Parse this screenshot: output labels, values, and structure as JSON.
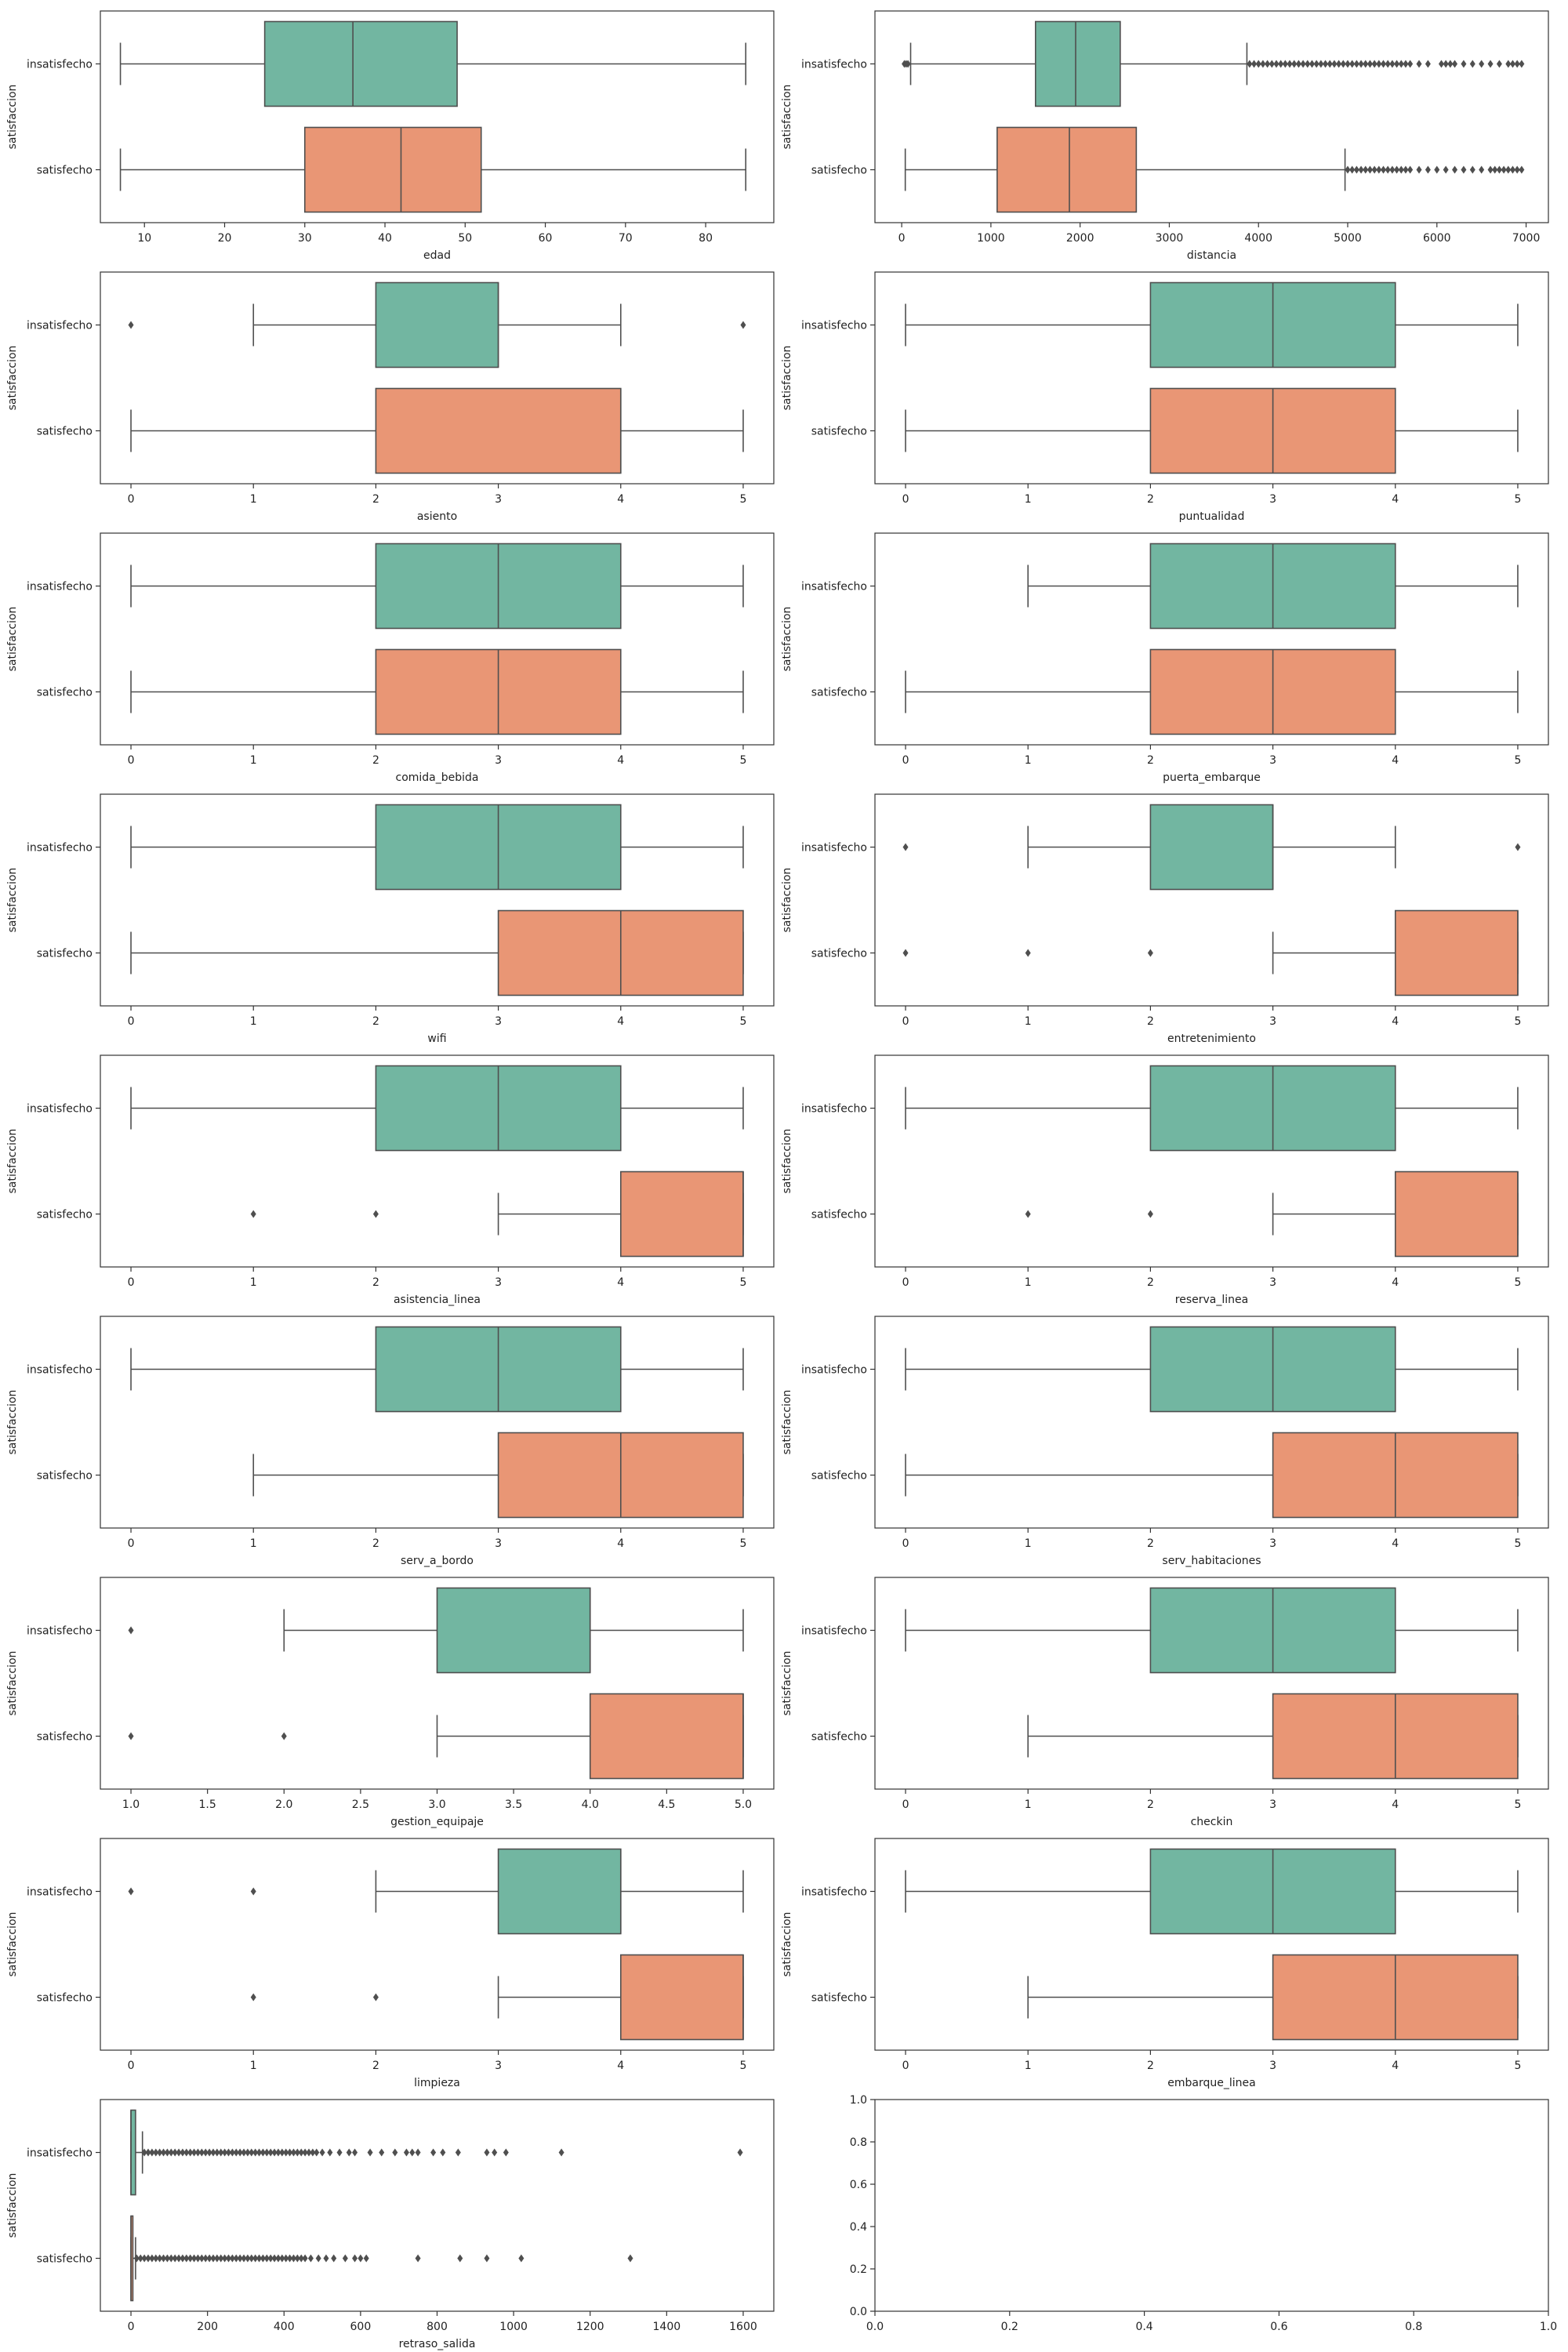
{
  "colors": {
    "insatisfecho": "#72b6a1",
    "satisfecho": "#e99675",
    "line": "#4f4f4f",
    "frame": "#333333"
  },
  "chart_data": [
    {
      "type": "box",
      "xlabel": "edad",
      "ylabel": "satisfaccion",
      "categories": [
        "insatisfecho",
        "satisfecho"
      ],
      "xlim": [
        4.5,
        88.5
      ],
      "xticks": [
        10,
        20,
        30,
        40,
        50,
        60,
        70,
        80
      ],
      "tick_labels": [
        "10",
        "20",
        "30",
        "40",
        "50",
        "60",
        "70",
        "80"
      ],
      "boxes": [
        {
          "q1": 25,
          "median": 36,
          "q3": 49,
          "whisker_low": 7,
          "whisker_high": 85,
          "outliers": []
        },
        {
          "q1": 30,
          "median": 42,
          "q3": 52,
          "whisker_low": 7,
          "whisker_high": 85,
          "outliers": []
        }
      ]
    },
    {
      "type": "box",
      "xlabel": "distancia",
      "ylabel": "satisfaccion",
      "categories": [
        "insatisfecho",
        "satisfecho"
      ],
      "xlim": [
        -300,
        7250
      ],
      "xticks": [
        0,
        1000,
        2000,
        3000,
        4000,
        5000,
        6000,
        7000
      ],
      "tick_labels": [
        "0",
        "1000",
        "2000",
        "3000",
        "4000",
        "5000",
        "6000",
        "7000"
      ],
      "boxes": [
        {
          "q1": 1500,
          "median": 1950,
          "q3": 2450,
          "whisker_low": 100,
          "whisker_high": 3870,
          "outliers": [
            30,
            50,
            70,
            3900,
            3950,
            4000,
            4050,
            4100,
            4150,
            4200,
            4250,
            4300,
            4350,
            4400,
            4450,
            4500,
            4550,
            4600,
            4650,
            4700,
            4750,
            4800,
            4850,
            4900,
            4950,
            5000,
            5050,
            5100,
            5150,
            5200,
            5250,
            5300,
            5350,
            5400,
            5450,
            5500,
            5550,
            5600,
            5650,
            5700,
            5800,
            5900,
            6050,
            6100,
            6150,
            6200,
            6300,
            6400,
            6500,
            6600,
            6700,
            6800,
            6850,
            6900,
            6950
          ]
        },
        {
          "q1": 1070,
          "median": 1880,
          "q3": 2630,
          "whisker_low": 40,
          "whisker_high": 4970,
          "outliers": [
            5000,
            5050,
            5100,
            5150,
            5200,
            5250,
            5300,
            5350,
            5400,
            5450,
            5500,
            5550,
            5600,
            5650,
            5700,
            5800,
            5900,
            6000,
            6100,
            6200,
            6300,
            6400,
            6500,
            6600,
            6650,
            6700,
            6750,
            6800,
            6850,
            6900,
            6950
          ]
        }
      ]
    },
    {
      "type": "box",
      "xlabel": "asiento",
      "ylabel": "satisfaccion",
      "categories": [
        "insatisfecho",
        "satisfecho"
      ],
      "xlim": [
        -0.25,
        5.25
      ],
      "xticks": [
        0,
        1,
        2,
        3,
        4,
        5
      ],
      "tick_labels": [
        "0",
        "1",
        "2",
        "3",
        "4",
        "5"
      ],
      "boxes": [
        {
          "q1": 2,
          "median": 3,
          "q3": 3,
          "whisker_low": 1,
          "whisker_high": 4,
          "outliers": [
            0,
            5
          ]
        },
        {
          "q1": 2,
          "median": 4,
          "q3": 4,
          "whisker_low": 0,
          "whisker_high": 5,
          "outliers": []
        }
      ]
    },
    {
      "type": "box",
      "xlabel": "puntualidad",
      "ylabel": "satisfaccion",
      "categories": [
        "insatisfecho",
        "satisfecho"
      ],
      "xlim": [
        -0.25,
        5.25
      ],
      "xticks": [
        0,
        1,
        2,
        3,
        4,
        5
      ],
      "tick_labels": [
        "0",
        "1",
        "2",
        "3",
        "4",
        "5"
      ],
      "boxes": [
        {
          "q1": 2,
          "median": 3,
          "q3": 4,
          "whisker_low": 0,
          "whisker_high": 5,
          "outliers": []
        },
        {
          "q1": 2,
          "median": 3,
          "q3": 4,
          "whisker_low": 0,
          "whisker_high": 5,
          "outliers": []
        }
      ]
    },
    {
      "type": "box",
      "xlabel": "comida_bebida",
      "ylabel": "satisfaccion",
      "categories": [
        "insatisfecho",
        "satisfecho"
      ],
      "xlim": [
        -0.25,
        5.25
      ],
      "xticks": [
        0,
        1,
        2,
        3,
        4,
        5
      ],
      "tick_labels": [
        "0",
        "1",
        "2",
        "3",
        "4",
        "5"
      ],
      "boxes": [
        {
          "q1": 2,
          "median": 3,
          "q3": 4,
          "whisker_low": 0,
          "whisker_high": 5,
          "outliers": []
        },
        {
          "q1": 2,
          "median": 3,
          "q3": 4,
          "whisker_low": 0,
          "whisker_high": 5,
          "outliers": []
        }
      ]
    },
    {
      "type": "box",
      "xlabel": "puerta_embarque",
      "ylabel": "satisfaccion",
      "categories": [
        "insatisfecho",
        "satisfecho"
      ],
      "xlim": [
        -0.25,
        5.25
      ],
      "xticks": [
        0,
        1,
        2,
        3,
        4,
        5
      ],
      "tick_labels": [
        "0",
        "1",
        "2",
        "3",
        "4",
        "5"
      ],
      "boxes": [
        {
          "q1": 2,
          "median": 3,
          "q3": 4,
          "whisker_low": 1,
          "whisker_high": 5,
          "outliers": []
        },
        {
          "q1": 2,
          "median": 3,
          "q3": 4,
          "whisker_low": 0,
          "whisker_high": 5,
          "outliers": []
        }
      ]
    },
    {
      "type": "box",
      "xlabel": "wifi",
      "ylabel": "satisfaccion",
      "categories": [
        "insatisfecho",
        "satisfecho"
      ],
      "xlim": [
        -0.25,
        5.25
      ],
      "xticks": [
        0,
        1,
        2,
        3,
        4,
        5
      ],
      "tick_labels": [
        "0",
        "1",
        "2",
        "3",
        "4",
        "5"
      ],
      "boxes": [
        {
          "q1": 2,
          "median": 3,
          "q3": 4,
          "whisker_low": 0,
          "whisker_high": 5,
          "outliers": []
        },
        {
          "q1": 3,
          "median": 4,
          "q3": 5,
          "whisker_low": 0,
          "whisker_high": 5,
          "outliers": []
        }
      ]
    },
    {
      "type": "box",
      "xlabel": "entretenimiento",
      "ylabel": "satisfaccion",
      "categories": [
        "insatisfecho",
        "satisfecho"
      ],
      "xlim": [
        -0.25,
        5.25
      ],
      "xticks": [
        0,
        1,
        2,
        3,
        4,
        5
      ],
      "tick_labels": [
        "0",
        "1",
        "2",
        "3",
        "4",
        "5"
      ],
      "boxes": [
        {
          "q1": 2,
          "median": 3,
          "q3": 3,
          "whisker_low": 1,
          "whisker_high": 4,
          "outliers": [
            0,
            5
          ]
        },
        {
          "q1": 4,
          "median": 5,
          "q3": 5,
          "whisker_low": 3,
          "whisker_high": 5,
          "outliers": [
            0,
            1,
            2
          ]
        }
      ]
    },
    {
      "type": "box",
      "xlabel": "asistencia_linea",
      "ylabel": "satisfaccion",
      "categories": [
        "insatisfecho",
        "satisfecho"
      ],
      "xlim": [
        -0.25,
        5.25
      ],
      "xticks": [
        0,
        1,
        2,
        3,
        4,
        5
      ],
      "tick_labels": [
        "0",
        "1",
        "2",
        "3",
        "4",
        "5"
      ],
      "boxes": [
        {
          "q1": 2,
          "median": 3,
          "q3": 4,
          "whisker_low": 0,
          "whisker_high": 5,
          "outliers": []
        },
        {
          "q1": 4,
          "median": 5,
          "q3": 5,
          "whisker_low": 3,
          "whisker_high": 5,
          "outliers": [
            1,
            2
          ]
        }
      ]
    },
    {
      "type": "box",
      "xlabel": "reserva_linea",
      "ylabel": "satisfaccion",
      "categories": [
        "insatisfecho",
        "satisfecho"
      ],
      "xlim": [
        -0.25,
        5.25
      ],
      "xticks": [
        0,
        1,
        2,
        3,
        4,
        5
      ],
      "tick_labels": [
        "0",
        "1",
        "2",
        "3",
        "4",
        "5"
      ],
      "boxes": [
        {
          "q1": 2,
          "median": 3,
          "q3": 4,
          "whisker_low": 0,
          "whisker_high": 5,
          "outliers": []
        },
        {
          "q1": 4,
          "median": 5,
          "q3": 5,
          "whisker_low": 3,
          "whisker_high": 5,
          "outliers": [
            1,
            2
          ]
        }
      ]
    },
    {
      "type": "box",
      "xlabel": "serv_a_bordo",
      "ylabel": "satisfaccion",
      "categories": [
        "insatisfecho",
        "satisfecho"
      ],
      "xlim": [
        -0.25,
        5.25
      ],
      "xticks": [
        0,
        1,
        2,
        3,
        4,
        5
      ],
      "tick_labels": [
        "0",
        "1",
        "2",
        "3",
        "4",
        "5"
      ],
      "boxes": [
        {
          "q1": 2,
          "median": 3,
          "q3": 4,
          "whisker_low": 0,
          "whisker_high": 5,
          "outliers": []
        },
        {
          "q1": 3,
          "median": 4,
          "q3": 5,
          "whisker_low": 1,
          "whisker_high": 5,
          "outliers": []
        }
      ]
    },
    {
      "type": "box",
      "xlabel": "serv_habitaciones",
      "ylabel": "satisfaccion",
      "categories": [
        "insatisfecho",
        "satisfecho"
      ],
      "xlim": [
        -0.25,
        5.25
      ],
      "xticks": [
        0,
        1,
        2,
        3,
        4,
        5
      ],
      "tick_labels": [
        "0",
        "1",
        "2",
        "3",
        "4",
        "5"
      ],
      "boxes": [
        {
          "q1": 2,
          "median": 3,
          "q3": 4,
          "whisker_low": 0,
          "whisker_high": 5,
          "outliers": []
        },
        {
          "q1": 3,
          "median": 4,
          "q3": 5,
          "whisker_low": 0,
          "whisker_high": 5,
          "outliers": []
        }
      ]
    },
    {
      "type": "box",
      "xlabel": "gestion_equipaje",
      "ylabel": "satisfaccion",
      "categories": [
        "insatisfecho",
        "satisfecho"
      ],
      "xlim": [
        0.8,
        5.2
      ],
      "xticks": [
        1.0,
        1.5,
        2.0,
        2.5,
        3.0,
        3.5,
        4.0,
        4.5,
        5.0
      ],
      "tick_labels": [
        "1.0",
        "1.5",
        "2.0",
        "2.5",
        "3.0",
        "3.5",
        "4.0",
        "4.5",
        "5.0"
      ],
      "boxes": [
        {
          "q1": 3,
          "median": 4,
          "q3": 4,
          "whisker_low": 2,
          "whisker_high": 5,
          "outliers": [
            1
          ]
        },
        {
          "q1": 4,
          "median": 5,
          "q3": 5,
          "whisker_low": 3,
          "whisker_high": 5,
          "outliers": [
            1,
            2
          ]
        }
      ]
    },
    {
      "type": "box",
      "xlabel": "checkin",
      "ylabel": "satisfaccion",
      "categories": [
        "insatisfecho",
        "satisfecho"
      ],
      "xlim": [
        -0.25,
        5.25
      ],
      "xticks": [
        0,
        1,
        2,
        3,
        4,
        5
      ],
      "tick_labels": [
        "0",
        "1",
        "2",
        "3",
        "4",
        "5"
      ],
      "boxes": [
        {
          "q1": 2,
          "median": 3,
          "q3": 4,
          "whisker_low": 0,
          "whisker_high": 5,
          "outliers": []
        },
        {
          "q1": 3,
          "median": 4,
          "q3": 5,
          "whisker_low": 1,
          "whisker_high": 5,
          "outliers": []
        }
      ]
    },
    {
      "type": "box",
      "xlabel": "limpieza",
      "ylabel": "satisfaccion",
      "categories": [
        "insatisfecho",
        "satisfecho"
      ],
      "xlim": [
        -0.25,
        5.25
      ],
      "xticks": [
        0,
        1,
        2,
        3,
        4,
        5
      ],
      "tick_labels": [
        "0",
        "1",
        "2",
        "3",
        "4",
        "5"
      ],
      "boxes": [
        {
          "q1": 3,
          "median": 4,
          "q3": 4,
          "whisker_low": 2,
          "whisker_high": 5,
          "outliers": [
            0,
            1
          ]
        },
        {
          "q1": 4,
          "median": 5,
          "q3": 5,
          "whisker_low": 3,
          "whisker_high": 5,
          "outliers": [
            1,
            2
          ]
        }
      ]
    },
    {
      "type": "box",
      "xlabel": "embarque_linea",
      "ylabel": "satisfaccion",
      "categories": [
        "insatisfecho",
        "satisfecho"
      ],
      "xlim": [
        -0.25,
        5.25
      ],
      "xticks": [
        0,
        1,
        2,
        3,
        4,
        5
      ],
      "tick_labels": [
        "0",
        "1",
        "2",
        "3",
        "4",
        "5"
      ],
      "boxes": [
        {
          "q1": 2,
          "median": 3,
          "q3": 4,
          "whisker_low": 0,
          "whisker_high": 5,
          "outliers": []
        },
        {
          "q1": 3,
          "median": 4,
          "q3": 5,
          "whisker_low": 1,
          "whisker_high": 5,
          "outliers": []
        }
      ]
    },
    {
      "type": "box",
      "xlabel": "retraso_salida",
      "ylabel": "satisfaccion",
      "categories": [
        "insatisfecho",
        "satisfecho"
      ],
      "xlim": [
        -80,
        1680
      ],
      "xticks": [
        0,
        200,
        400,
        600,
        800,
        1000,
        1200,
        1400,
        1600
      ],
      "tick_labels": [
        "0",
        "200",
        "400",
        "600",
        "800",
        "1000",
        "1200",
        "1400",
        "1600"
      ],
      "boxes": [
        {
          "q1": 0,
          "median": 0,
          "q3": 12,
          "whisker_low": 0,
          "whisker_high": 30,
          "outliers": [
            35,
            45,
            55,
            65,
            75,
            85,
            95,
            105,
            115,
            125,
            135,
            145,
            155,
            165,
            175,
            185,
            195,
            205,
            215,
            225,
            235,
            245,
            255,
            265,
            275,
            285,
            295,
            305,
            315,
            325,
            335,
            345,
            355,
            365,
            375,
            385,
            395,
            405,
            415,
            425,
            435,
            445,
            455,
            465,
            475,
            485,
            500,
            520,
            545,
            570,
            585,
            625,
            655,
            690,
            720,
            735,
            750,
            790,
            815,
            855,
            930,
            950,
            980,
            1125,
            1592
          ]
        },
        {
          "q1": 0,
          "median": 0,
          "q3": 5,
          "whisker_low": 0,
          "whisker_high": 12,
          "outliers": [
            15,
            25,
            35,
            45,
            55,
            65,
            75,
            85,
            95,
            105,
            115,
            125,
            135,
            145,
            155,
            165,
            175,
            185,
            195,
            205,
            215,
            225,
            235,
            245,
            255,
            265,
            275,
            285,
            295,
            305,
            315,
            325,
            335,
            345,
            355,
            365,
            375,
            385,
            395,
            405,
            415,
            425,
            435,
            445,
            455,
            470,
            490,
            510,
            530,
            560,
            585,
            600,
            615,
            750,
            860,
            930,
            1020,
            1305
          ]
        }
      ]
    },
    {
      "type": "empty",
      "xlabel": "",
      "ylabel": "",
      "categories": [],
      "xlim": [
        0,
        1
      ],
      "ylim": [
        0,
        1
      ],
      "xticks": [
        0.0,
        0.2,
        0.4,
        0.6,
        0.8,
        1.0
      ],
      "tick_labels": [
        "0.0",
        "0.2",
        "0.4",
        "0.6",
        "0.8",
        "1.0"
      ],
      "yticks": [
        0.0,
        0.2,
        0.4,
        0.6,
        0.8,
        1.0
      ],
      "ytick_labels": [
        "0.0",
        "0.2",
        "0.4",
        "0.6",
        "0.8",
        "1.0"
      ],
      "boxes": []
    }
  ]
}
